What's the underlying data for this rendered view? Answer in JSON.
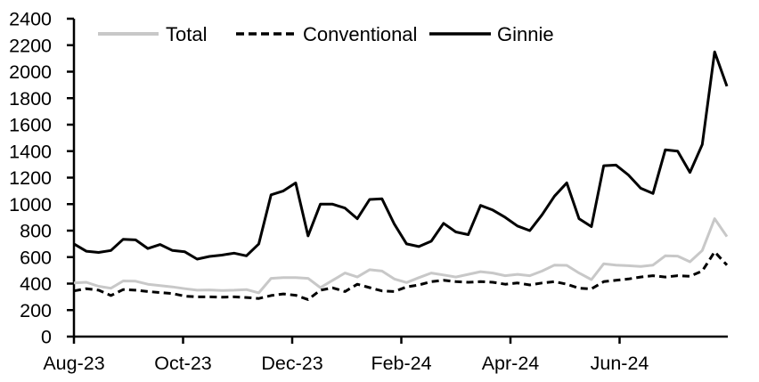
{
  "figure": {
    "background_color": "#ffffff",
    "axis_color": "#000000",
    "text_color": "#000000"
  },
  "legend": {
    "items": [
      {
        "label": "Total",
        "color": "#c8c8c8",
        "dash": ""
      },
      {
        "label": "Conventional",
        "color": "#000000",
        "dash": "9 5"
      },
      {
        "label": "Ginnie",
        "color": "#000000",
        "dash": ""
      }
    ]
  },
  "chart_data": {
    "type": "line",
    "title": "",
    "xlabel": "",
    "ylabel": "",
    "grid": false,
    "legend_position": "top",
    "ylim": [
      0,
      2400
    ],
    "y_tick_step": 200,
    "y_tick_labels": [
      "0",
      "200",
      "400",
      "600",
      "800",
      "1000",
      "1200",
      "1400",
      "1600",
      "1800",
      "2000",
      "2200",
      "2400"
    ],
    "x_tick_labels": [
      "Aug-23",
      "Oct-23",
      "Dec-23",
      "Feb-24",
      "Apr-24",
      "Jun-24"
    ],
    "x_tick_month_offsets": [
      0,
      2,
      4,
      6,
      8,
      10
    ],
    "x_unit": "weekly observations, Aug-2023 through Aug-2024",
    "x_range_months": [
      0,
      12
    ],
    "series": [
      {
        "name": "Total",
        "color": "#c8c8c8",
        "style": "solid",
        "values": [
          405,
          410,
          380,
          365,
          420,
          418,
          395,
          385,
          375,
          362,
          350,
          352,
          348,
          350,
          355,
          330,
          440,
          445,
          445,
          440,
          370,
          425,
          480,
          450,
          505,
          495,
          435,
          408,
          445,
          480,
          465,
          450,
          470,
          490,
          480,
          460,
          470,
          460,
          495,
          540,
          538,
          480,
          430,
          550,
          540,
          535,
          530,
          540,
          610,
          608,
          565,
          650,
          890,
          755
        ]
      },
      {
        "name": "Conventional",
        "color": "#000000",
        "style": "dashed",
        "values": [
          345,
          362,
          350,
          310,
          355,
          350,
          340,
          332,
          325,
          305,
          300,
          300,
          298,
          300,
          295,
          288,
          310,
          322,
          312,
          280,
          350,
          368,
          340,
          395,
          370,
          345,
          340,
          375,
          390,
          415,
          425,
          415,
          410,
          415,
          410,
          395,
          405,
          390,
          405,
          415,
          395,
          365,
          360,
          415,
          425,
          435,
          450,
          460,
          450,
          460,
          455,
          495,
          640,
          540
        ]
      },
      {
        "name": "Ginnie",
        "color": "#000000",
        "style": "solid",
        "values": [
          700,
          645,
          635,
          650,
          735,
          730,
          665,
          695,
          650,
          640,
          585,
          605,
          615,
          630,
          610,
          700,
          1070,
          1100,
          1160,
          760,
          1000,
          1000,
          970,
          890,
          1035,
          1040,
          850,
          700,
          680,
          720,
          855,
          790,
          770,
          990,
          955,
          900,
          835,
          800,
          920,
          1060,
          1160,
          890,
          830,
          1290,
          1295,
          1220,
          1120,
          1080,
          1410,
          1400,
          1240,
          1450,
          2150,
          1890
        ]
      }
    ]
  }
}
